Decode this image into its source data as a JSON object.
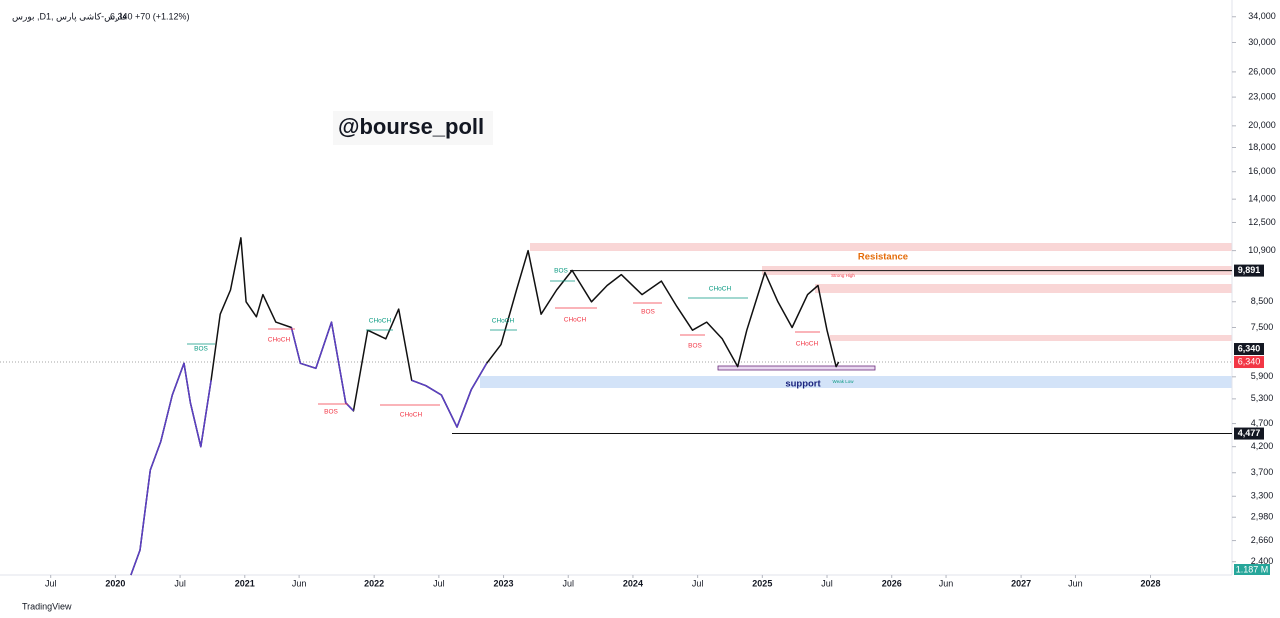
{
  "header": {
    "symbol": "بورس ,Dفارس-کاشی پارس ,1",
    "price": "6,340",
    "change": "+70 (+1.12%)"
  },
  "watermark": "@bourse_poll",
  "footer": "TradingView",
  "chart_data": {
    "type": "line",
    "log_y": true,
    "color": "#111111",
    "x": [
      2020.12,
      2020.19,
      2020.27,
      2020.35,
      2020.44,
      2020.53,
      2020.58,
      2020.66,
      2020.74,
      2020.81,
      2020.89,
      2020.97,
      2021.01,
      2021.09,
      2021.14,
      2021.24,
      2021.36,
      2021.43,
      2021.55,
      2021.67,
      2021.78,
      2021.84,
      2021.95,
      2022.09,
      2022.19,
      2022.29,
      2022.4,
      2022.52,
      2022.64,
      2022.75,
      2022.87,
      2022.98,
      2023.1,
      2023.19,
      2023.29,
      2023.41,
      2023.53,
      2023.68,
      2023.8,
      2023.91,
      2024.07,
      2024.22,
      2024.34,
      2024.46,
      2024.57,
      2024.69,
      2024.81,
      2024.88,
      2025.02,
      2025.12,
      2025.23,
      2025.35,
      2025.43,
      2025.5,
      2025.57,
      2025.59
    ],
    "values": [
      2250,
      2540,
      3750,
      4300,
      5400,
      6300,
      5200,
      4200,
      5800,
      8000,
      9000,
      11600,
      8500,
      7900,
      8800,
      7700,
      7500,
      6300,
      6150,
      7700,
      5200,
      5000,
      7400,
      7100,
      8200,
      5800,
      5650,
      5400,
      4620,
      5540,
      6300,
      6900,
      9000,
      10900,
      8000,
      9000,
      9900,
      8500,
      9200,
      9700,
      8800,
      9400,
      8300,
      7400,
      7700,
      7100,
      6200,
      7400,
      9800,
      8500,
      7500,
      8800,
      9200,
      7400,
      6200,
      6340
    ],
    "overlay": {
      "color": "#5b3fc4",
      "values": [
        2250,
        2540,
        3750,
        4300,
        5400,
        6300,
        5200,
        4200,
        5800,
        null,
        null,
        null,
        null,
        null,
        null,
        null,
        7500,
        6300,
        6150,
        7700,
        5200,
        5000,
        null,
        null,
        null,
        5800,
        5650,
        5400,
        4620,
        5540,
        6300,
        null,
        null,
        null,
        null,
        null,
        null,
        null,
        null,
        null,
        null,
        null,
        null,
        null,
        null,
        null,
        null,
        null,
        null,
        null,
        null,
        null,
        null,
        null,
        null,
        null
      ]
    },
    "xlim": [
      2019.17,
      2028.63
    ],
    "xticks": [
      {
        "value": 2019.5,
        "label": "Jul"
      },
      2020,
      {
        "value": 2020.5,
        "label": "Jul"
      },
      2021,
      {
        "value": 2021.42,
        "label": "Jun"
      },
      2022,
      {
        "value": 2022.5,
        "label": "Jul"
      },
      2023,
      {
        "value": 2023.5,
        "label": "Jul"
      },
      2024,
      {
        "value": 2024.5,
        "label": "Jul"
      },
      2025,
      {
        "value": 2025.5,
        "label": "Jul"
      },
      2026,
      {
        "value": 2026.42,
        "label": "Jun"
      },
      2027,
      {
        "value": 2027.42,
        "label": "Jun"
      },
      2028
    ],
    "ylim": [
      2250,
      36000
    ],
    "yticks": [
      {
        "value": 34000,
        "label": "34,000"
      },
      {
        "value": 30000,
        "label": "30,000"
      },
      {
        "value": 26000,
        "label": "26,000"
      },
      {
        "value": 23000,
        "label": "23,000"
      },
      {
        "value": 20000,
        "label": "20,000"
      },
      {
        "value": 18000,
        "label": "18,000"
      },
      {
        "value": 16000,
        "label": "16,000"
      },
      {
        "value": 14000,
        "label": "14,000"
      },
      {
        "value": 12500,
        "label": "12,500"
      },
      {
        "value": 10900,
        "label": "10,900"
      },
      {
        "value": 8500,
        "label": "8,500"
      },
      {
        "value": 7500,
        "label": "7,500"
      },
      {
        "value": 5900,
        "label": "5,900"
      },
      {
        "value": 5300,
        "label": "5,300"
      },
      {
        "value": 4700,
        "label": "4,700"
      },
      {
        "value": 4200,
        "label": "4,200"
      },
      {
        "value": 3700,
        "label": "3,700"
      },
      {
        "value": 3300,
        "label": "3,300"
      },
      {
        "value": 2980,
        "label": "2,980"
      },
      {
        "value": 2660,
        "label": "2,660"
      },
      {
        "value": 2400,
        "label": "2,400"
      }
    ],
    "levels": [
      {
        "value": 9891,
        "label": "9,891"
      },
      {
        "value": 6340,
        "label": "6,340"
      },
      {
        "value": 4477,
        "label": "4,477"
      }
    ],
    "last_price": {
      "value": 6340,
      "label": "6,340"
    },
    "volume_label": "1.187 M",
    "annotations": [
      "BOS",
      "CHoCH",
      "CHoCH",
      "BOS",
      "CHoCH",
      "CHoCH",
      "BOS",
      "CHoCH",
      "BOS",
      "CHoCH",
      "BOS",
      "CHoCH",
      "Strong High",
      "Weak Low",
      "Resistance",
      "support"
    ]
  }
}
